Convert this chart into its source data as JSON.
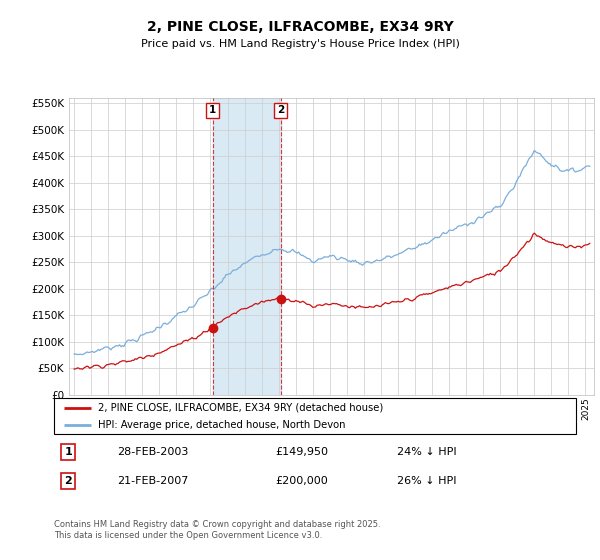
{
  "title": "2, PINE CLOSE, ILFRACOMBE, EX34 9RY",
  "subtitle": "Price paid vs. HM Land Registry's House Price Index (HPI)",
  "legend_line1": "2, PINE CLOSE, ILFRACOMBE, EX34 9RY (detached house)",
  "legend_line2": "HPI: Average price, detached house, North Devon",
  "transaction1_date": "28-FEB-2003",
  "transaction1_price": "£149,950",
  "transaction1_hpi": "24% ↓ HPI",
  "transaction2_date": "21-FEB-2007",
  "transaction2_price": "£200,000",
  "transaction2_hpi": "26% ↓ HPI",
  "footer": "Contains HM Land Registry data © Crown copyright and database right 2025.\nThis data is licensed under the Open Government Licence v3.0.",
  "hpi_color": "#7aaedb",
  "price_color": "#cc1111",
  "shade_color": "#daeaf5",
  "ylim": [
    0,
    560000
  ],
  "yticks": [
    0,
    50000,
    100000,
    150000,
    200000,
    250000,
    300000,
    350000,
    400000,
    450000,
    500000,
    550000
  ],
  "xlim_start": 1994.7,
  "xlim_end": 2025.5,
  "transaction1_x": 2003.12,
  "transaction2_x": 2007.12,
  "transaction1_y": 149950,
  "transaction2_y": 200000
}
